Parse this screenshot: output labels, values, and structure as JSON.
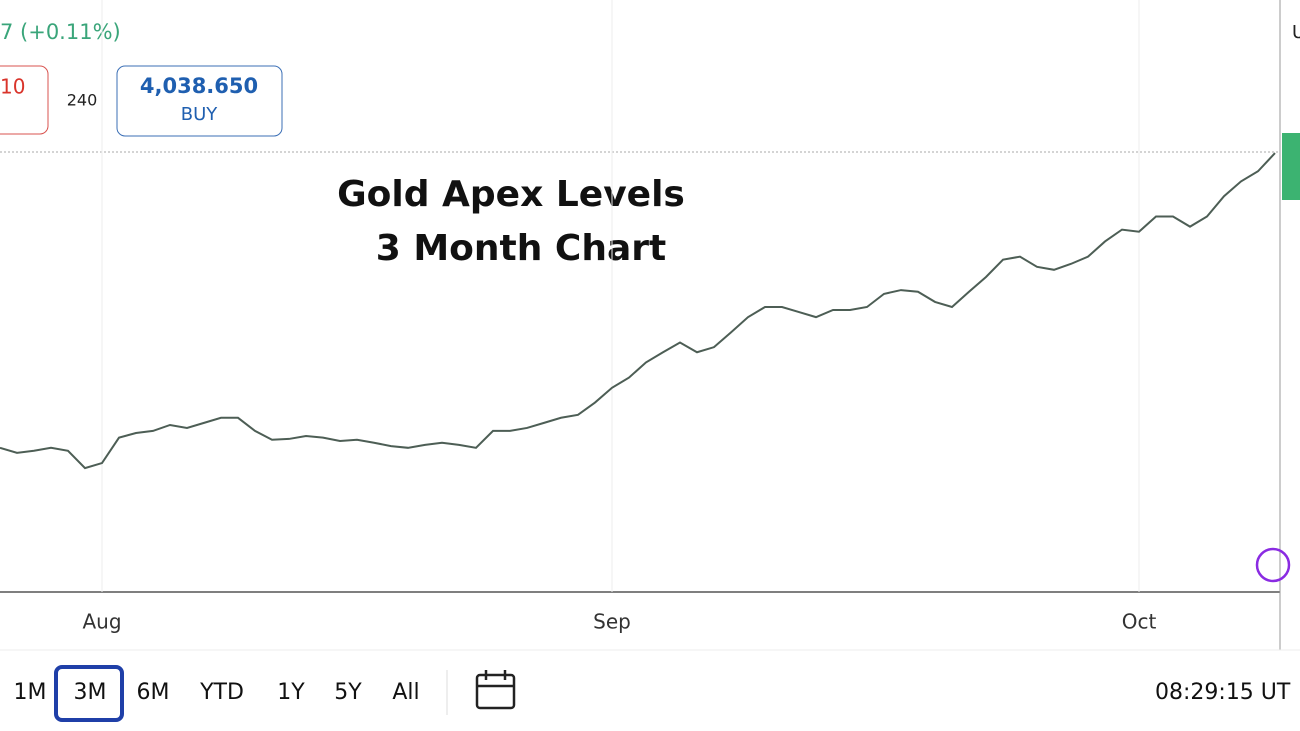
{
  "ui": {
    "change": "7 (+0.11%)",
    "sell_price": "10",
    "spread": "240",
    "buy_price": "4,038.650",
    "buy_label": "BUY",
    "ranges": [
      "1M",
      "3M",
      "6M",
      "YTD",
      "1Y",
      "5Y",
      "All"
    ],
    "clock": "08:29:15 UT",
    "corner": "U"
  },
  "chart_data": {
    "type": "line",
    "title": [
      "Gold Apex Levels",
      "3 Month Chart"
    ],
    "categories": [
      null,
      null,
      null,
      null,
      null,
      null,
      "Aug",
      null,
      null,
      null,
      null,
      null,
      null,
      null,
      null,
      null,
      null,
      null,
      null,
      null,
      null,
      null,
      null,
      null,
      null,
      null,
      null,
      null,
      null,
      null,
      null,
      null,
      null,
      null,
      null,
      null,
      "Sep",
      null,
      null,
      null,
      null,
      null,
      null,
      null,
      null,
      null,
      null,
      null,
      null,
      null,
      null,
      null,
      null,
      null,
      null,
      null,
      null,
      null,
      null,
      null,
      null,
      null,
      null,
      null,
      null,
      null,
      null,
      "Oct",
      null,
      null,
      null,
      null,
      null,
      null,
      null,
      null
    ],
    "series": [
      {
        "color": "#4d5e55",
        "values": [
          3341,
          3329,
          3334,
          3341,
          3334,
          3293,
          3305,
          3365,
          3376,
          3381,
          3395,
          3388,
          3400,
          3412,
          3412,
          3381,
          3360,
          3362,
          3369,
          3365,
          3357,
          3360,
          3353,
          3345,
          3341,
          3348,
          3353,
          3348,
          3341,
          3381,
          3381,
          3388,
          3400,
          3412,
          3419,
          3448,
          3483,
          3507,
          3543,
          3567,
          3590,
          3567,
          3579,
          3614,
          3650,
          3674,
          3674,
          3662,
          3650,
          3667,
          3667,
          3674,
          3705,
          3714,
          3710,
          3686,
          3674,
          3710,
          3745,
          3786,
          3793,
          3769,
          3762,
          3776,
          3793,
          3829,
          3857,
          3852,
          3888,
          3888,
          3864,
          3888,
          3936,
          3971,
          3995,
          4038
        ]
      }
    ],
    "ylim": [
      3000,
      4400
    ]
  }
}
